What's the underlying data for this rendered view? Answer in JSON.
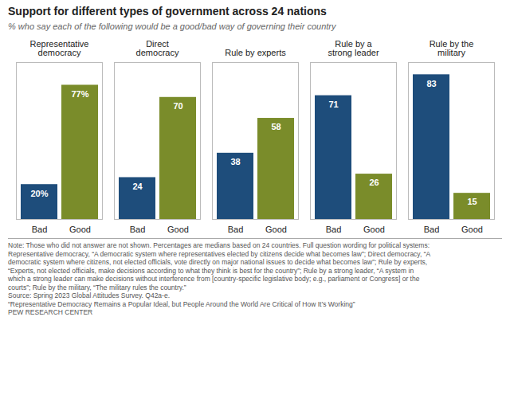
{
  "chart_data": {
    "type": "bar",
    "title": "Support for different types of government across 24 nations",
    "subtitle": "% who say each of the following would be a good/bad way of governing their country",
    "categories": [
      "Representative\ndemocracy",
      "Direct\ndemocracy",
      "Rule by experts",
      "Rule by a\nstrong leader",
      "Rule by the\nmilitary"
    ],
    "series": [
      {
        "name": "Bad",
        "color": "#1e4d7b",
        "values": [
          20,
          24,
          38,
          71,
          83
        ],
        "value_labels": [
          "20%",
          "24",
          "38",
          "71",
          "83"
        ]
      },
      {
        "name": "Good",
        "color": "#7a8c2a",
        "values": [
          77,
          70,
          58,
          26,
          15
        ],
        "value_labels": [
          "77%",
          "70",
          "58",
          "26",
          "15"
        ]
      }
    ],
    "ylim": [
      0,
      90
    ],
    "data_labels": true,
    "tick_labels": "x",
    "annotations": [
      "Note: Those who did not answer are not shown. Percentages are medians based on 24 countries. Full question wording for political systems:",
      "Representative democracy, “A democratic system where representatives elected by citizens decide what becomes law”; Direct democracy, “A",
      "democratic system where citizens, not elected officials, vote directly on major national issues to decide what becomes law”; Rule by experts,",
      "“Experts, not elected officials, make decisions according to what they think is best for the country”; Rule by a strong leader, “A system in",
      "which a strong leader can make decisions without interference from [country-specific legislative body; e.g., parliament or Congress] or the",
      "courts”; Rule by the military, “The military rules the country.”",
      "Source: Spring 2023 Global Attitudes Survey. Q42a-e.",
      "“Representative Democracy Remains a Popular Ideal, but People Around the World Are Critical of How It’s Working”",
      "PEW RESEARCH CENTER"
    ]
  }
}
